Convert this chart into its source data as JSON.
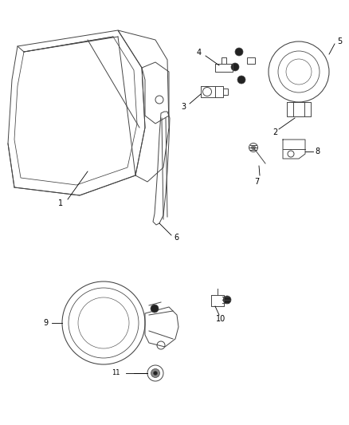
{
  "bg_color": "#ffffff",
  "line_color": "#444444",
  "dark_color": "#222222",
  "gray_color": "#888888",
  "label_color": "#000000",
  "label_fs": 7,
  "lw": 0.7,
  "figsize": [
    4.38,
    5.33
  ],
  "dpi": 100
}
